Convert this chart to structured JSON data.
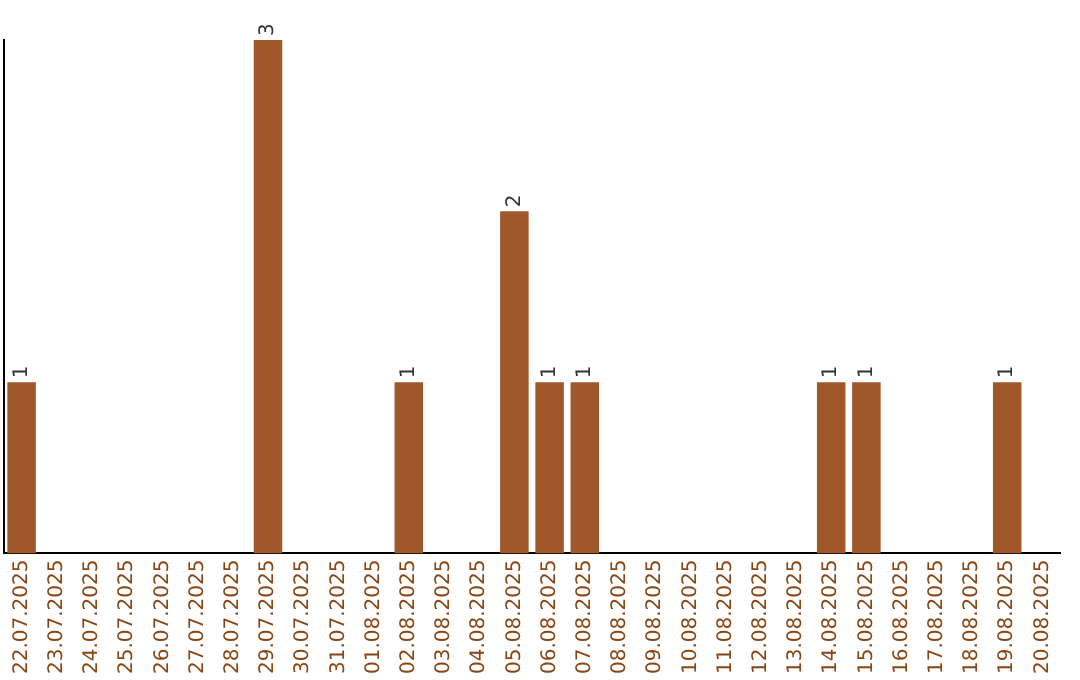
{
  "chart_data": {
    "type": "bar",
    "categories": [
      "22.07.2025",
      "23.07.2025",
      "24.07.2025",
      "25.07.2025",
      "26.07.2025",
      "27.07.2025",
      "28.07.2025",
      "29.07.2025",
      "30.07.2025",
      "31.07.2025",
      "01.08.2025",
      "02.08.2025",
      "03.08.2025",
      "04.08.2025",
      "05.08.2025",
      "06.08.2025",
      "07.08.2025",
      "08.08.2025",
      "09.08.2025",
      "10.08.2025",
      "11.08.2025",
      "12.08.2025",
      "13.08.2025",
      "14.08.2025",
      "15.08.2025",
      "16.08.2025",
      "17.08.2025",
      "18.08.2025",
      "19.08.2025",
      "20.08.2025"
    ],
    "values": [
      1,
      0,
      0,
      0,
      0,
      0,
      0,
      3,
      0,
      0,
      0,
      1,
      0,
      0,
      2,
      1,
      1,
      0,
      0,
      0,
      0,
      0,
      0,
      1,
      1,
      0,
      0,
      0,
      1,
      0
    ],
    "value_labels": [
      "1",
      null,
      null,
      null,
      null,
      null,
      null,
      "3",
      null,
      null,
      null,
      "1",
      null,
      null,
      "2",
      "1",
      "1",
      null,
      null,
      null,
      null,
      null,
      null,
      "1",
      "1",
      null,
      null,
      null,
      "1",
      null
    ],
    "color": "#a0582b",
    "grid": false,
    "legend": false,
    "tick_labels": "x"
  }
}
